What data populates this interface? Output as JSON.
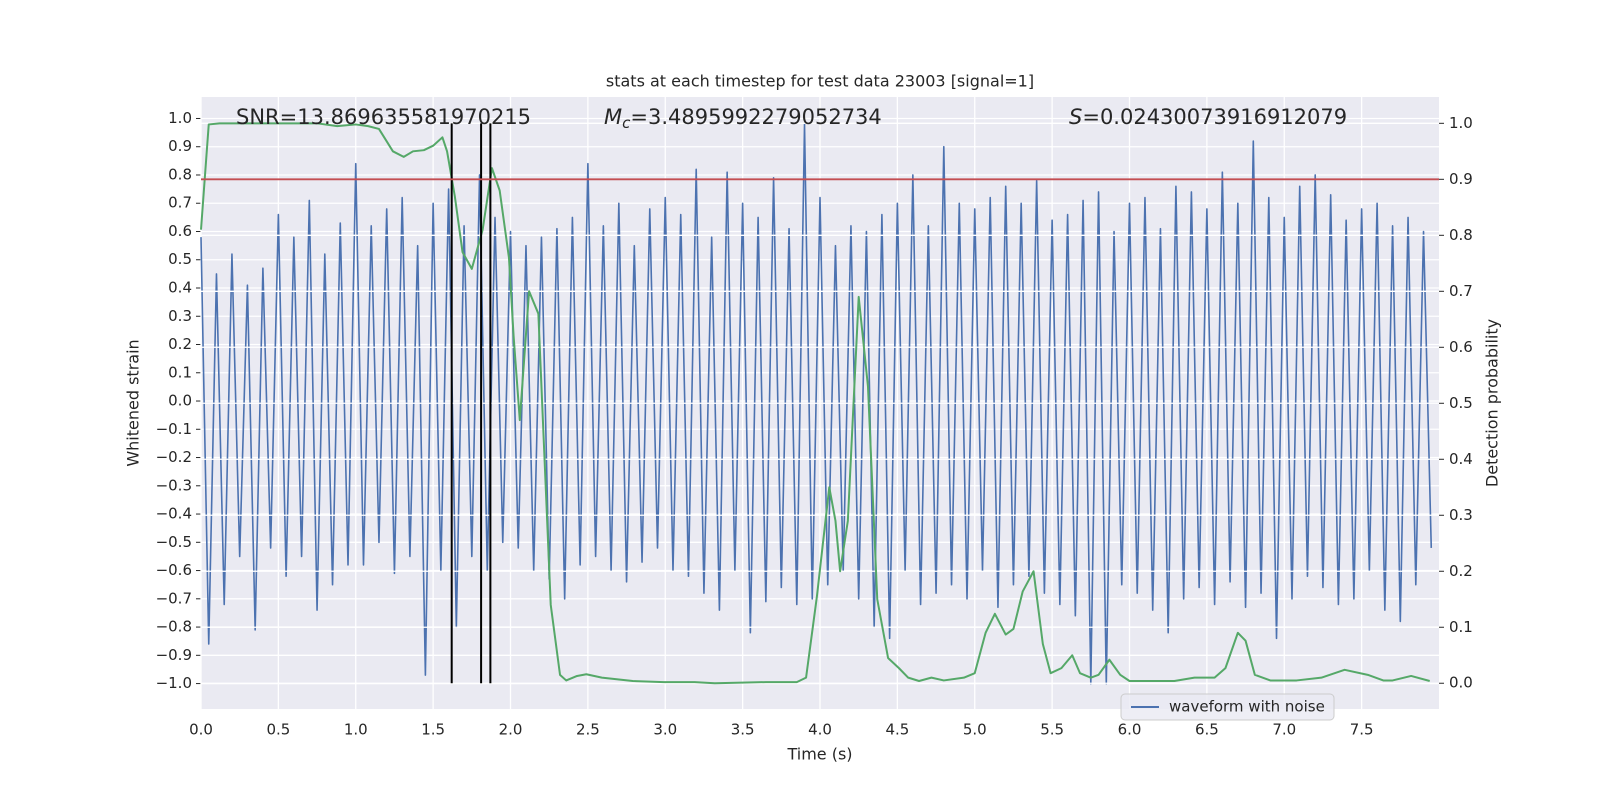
{
  "chart_data": {
    "type": "line",
    "title": "stats at each timestep for test data 23003 [signal=1]",
    "x_label": "Time (s)",
    "y_label": "Whitened strain",
    "y2_label": "Detection probability",
    "annotations": [
      {
        "variable": "SNR",
        "italic": false,
        "value": "=13.869635581970215"
      },
      {
        "variable": "M",
        "subscript": "c",
        "italic": true,
        "value": "=3.4895992279052734"
      },
      {
        "variable": "S",
        "italic": true,
        "value": "=0.02430073916912079"
      }
    ],
    "xlim": [
      0,
      8
    ],
    "ylim": [
      -1.09,
      1.076
    ],
    "y2lim": [
      -0.046,
      1.047
    ],
    "xticks": [
      {
        "value": 0,
        "label": "0.0"
      },
      {
        "value": 0.5,
        "label": "0.5"
      },
      {
        "value": 1,
        "label": "1.0"
      },
      {
        "value": 1.5,
        "label": "1.5"
      },
      {
        "value": 2,
        "label": "2.0"
      },
      {
        "value": 2.5,
        "label": "2.5"
      },
      {
        "value": 3,
        "label": "3.0"
      },
      {
        "value": 3.5,
        "label": "3.5"
      },
      {
        "value": 4,
        "label": "4.0"
      },
      {
        "value": 4.5,
        "label": "4.5"
      },
      {
        "value": 5,
        "label": "5.0"
      },
      {
        "value": 5.5,
        "label": "5.5"
      },
      {
        "value": 6,
        "label": "6.0"
      },
      {
        "value": 6.5,
        "label": "6.5"
      },
      {
        "value": 7,
        "label": "7.0"
      },
      {
        "value": 7.5,
        "label": "7.5"
      }
    ],
    "yticks": [
      {
        "value": 1,
        "label": "1.0"
      },
      {
        "value": 0.9,
        "label": "0.9"
      },
      {
        "value": 0.8,
        "label": "0.8"
      },
      {
        "value": 0.7,
        "label": "0.7"
      },
      {
        "value": 0.6,
        "label": "0.6"
      },
      {
        "value": 0.5,
        "label": "0.5"
      },
      {
        "value": 0.4,
        "label": "0.4"
      },
      {
        "value": 0.3,
        "label": "0.3"
      },
      {
        "value": 0.2,
        "label": "0.2"
      },
      {
        "value": 0.1,
        "label": "0.1"
      },
      {
        "value": 0,
        "label": "0.0"
      },
      {
        "value": -0.1,
        "label": "−0.1"
      },
      {
        "value": -0.2,
        "label": "−0.2"
      },
      {
        "value": -0.3,
        "label": "−0.3"
      },
      {
        "value": -0.4,
        "label": "−0.4"
      },
      {
        "value": -0.5,
        "label": "−0.5"
      },
      {
        "value": -0.6,
        "label": "−0.6"
      },
      {
        "value": -0.7,
        "label": "−0.7"
      },
      {
        "value": -0.8,
        "label": "−0.8"
      },
      {
        "value": -0.9,
        "label": "−0.9"
      },
      {
        "value": -1,
        "label": "−1.0"
      }
    ],
    "y2ticks": [
      {
        "value": 1,
        "label": "1.0"
      },
      {
        "value": 0.9,
        "label": "0.9"
      },
      {
        "value": 0.8,
        "label": "0.8"
      },
      {
        "value": 0.7,
        "label": "0.7"
      },
      {
        "value": 0.6,
        "label": "0.6"
      },
      {
        "value": 0.5,
        "label": "0.5"
      },
      {
        "value": 0.4,
        "label": "0.4"
      },
      {
        "value": 0.3,
        "label": "0.3"
      },
      {
        "value": 0.2,
        "label": "0.2"
      },
      {
        "value": 0.1,
        "label": "0.1"
      },
      {
        "value": 0,
        "label": "0.0"
      }
    ],
    "grid": true,
    "legend": "lower right",
    "series": [
      {
        "name": "waveform with noise",
        "color": "#4c72b0",
        "x": [
          0,
          0.05,
          0.1,
          0.15,
          0.2,
          0.25,
          0.3,
          0.35,
          0.4,
          0.45,
          0.5,
          0.55,
          0.6,
          0.65,
          0.7,
          0.75,
          0.8,
          0.85,
          0.9,
          0.95,
          1,
          1.05,
          1.1,
          1.15,
          1.2,
          1.25,
          1.3,
          1.35,
          1.4,
          1.45,
          1.5,
          1.55,
          1.6,
          1.65,
          1.7,
          1.75,
          1.8,
          1.85,
          1.9,
          1.95,
          2,
          2.05,
          2.1,
          2.15,
          2.2,
          2.25,
          2.3,
          2.35,
          2.4,
          2.45,
          2.5,
          2.55,
          2.6,
          2.65,
          2.7,
          2.75,
          2.8,
          2.85,
          2.9,
          2.95,
          3,
          3.05,
          3.1,
          3.15,
          3.2,
          3.25,
          3.3,
          3.35,
          3.4,
          3.45,
          3.5,
          3.55,
          3.6,
          3.65,
          3.7,
          3.75,
          3.8,
          3.85,
          3.9,
          3.95,
          4,
          4.05,
          4.1,
          4.15,
          4.2,
          4.25,
          4.3,
          4.35,
          4.4,
          4.45,
          4.5,
          4.55,
          4.6,
          4.65,
          4.7,
          4.75,
          4.8,
          4.85,
          4.9,
          4.95,
          5,
          5.05,
          5.1,
          5.15,
          5.2,
          5.25,
          5.3,
          5.35,
          5.4,
          5.45,
          5.5,
          5.55,
          5.6,
          5.65,
          5.7,
          5.75,
          5.8,
          5.85,
          5.9,
          5.95,
          6,
          6.05,
          6.1,
          6.15,
          6.2,
          6.25,
          6.3,
          6.35,
          6.4,
          6.45,
          6.5,
          6.55,
          6.6,
          6.65,
          6.7,
          6.75,
          6.8,
          6.85,
          6.9,
          6.95,
          7,
          7.05,
          7.1,
          7.15,
          7.2,
          7.25,
          7.3,
          7.35,
          7.4,
          7.45,
          7.5,
          7.55,
          7.6,
          7.65,
          7.7,
          7.75,
          7.8,
          7.85,
          7.9,
          7.95
        ],
        "values": [
          0.58,
          -0.86,
          0.45,
          -0.72,
          0.52,
          -0.55,
          0.41,
          -0.81,
          0.47,
          -0.52,
          0.66,
          -0.62,
          0.58,
          -0.55,
          0.71,
          -0.74,
          0.52,
          -0.65,
          0.63,
          -0.58,
          0.84,
          -0.58,
          0.62,
          -0.5,
          0.68,
          -0.61,
          0.72,
          -0.55,
          0.55,
          -0.97,
          0.7,
          -0.6,
          0.75,
          -0.8,
          0.62,
          -0.55,
          0.8,
          -0.6,
          0.65,
          -0.5,
          0.6,
          -0.52,
          0.55,
          -0.6,
          0.58,
          -0.63,
          0.61,
          -0.7,
          0.65,
          -0.58,
          0.84,
          -0.55,
          0.62,
          -0.6,
          0.7,
          -0.64,
          0.55,
          -0.57,
          0.68,
          -0.52,
          0.72,
          -0.6,
          0.66,
          -0.62,
          0.82,
          -0.68,
          0.58,
          -0.74,
          0.81,
          -0.6,
          0.7,
          -0.82,
          0.65,
          -0.71,
          0.79,
          -0.66,
          0.61,
          -0.72,
          0.98,
          -0.7,
          0.72,
          -0.65,
          0.55,
          -0.6,
          0.62,
          -0.7,
          0.6,
          -0.8,
          0.66,
          -0.84,
          0.7,
          -0.6,
          0.8,
          -0.72,
          0.62,
          -0.68,
          0.9,
          -0.65,
          0.7,
          -0.7,
          0.68,
          -0.6,
          0.72,
          -0.73,
          0.76,
          -0.65,
          0.7,
          -0.62,
          0.78,
          -0.68,
          0.64,
          -0.72,
          0.66,
          -0.76,
          0.71,
          -1.0,
          0.74,
          -1.0,
          0.6,
          -0.65,
          0.7,
          -0.68,
          0.72,
          -0.74,
          0.61,
          -0.82,
          0.76,
          -0.7,
          0.74,
          -0.66,
          0.68,
          -0.72,
          0.81,
          -0.64,
          0.7,
          -0.73,
          0.92,
          -0.68,
          0.72,
          -0.84,
          0.65,
          -0.7,
          0.76,
          -0.62,
          0.8,
          -0.66,
          0.73,
          -0.72,
          0.64,
          -0.7,
          0.68,
          -0.6,
          0.7,
          -0.74,
          0.62,
          -0.78,
          0.65,
          -0.65,
          0.6,
          -0.52
        ]
      },
      {
        "color": "#55a868",
        "axis": "y2",
        "x": [
          0,
          0.05,
          0.12,
          0.35,
          0.75,
          0.88,
          1.0,
          1.08,
          1.15,
          1.24,
          1.31,
          1.37,
          1.44,
          1.5,
          1.56,
          1.59,
          1.64,
          1.69,
          1.75,
          1.82,
          1.88,
          1.93,
          1.99,
          2.02,
          2.06,
          2.12,
          2.18,
          2.22,
          2.26,
          2.32,
          2.36,
          2.43,
          2.49,
          2.59,
          2.79,
          2.99,
          3.19,
          3.32,
          3.65,
          3.85,
          3.91,
          3.98,
          4.06,
          4.1,
          4.13,
          4.18,
          4.25,
          4.31,
          4.37,
          4.44,
          4.51,
          4.57,
          4.64,
          4.72,
          4.8,
          4.93,
          5.0,
          5.07,
          5.13,
          5.2,
          5.25,
          5.31,
          5.38,
          5.44,
          5.49,
          5.56,
          5.63,
          5.68,
          5.75,
          5.8,
          5.87,
          5.94,
          6.0,
          6.29,
          6.42,
          6.55,
          6.62,
          6.7,
          6.75,
          6.81,
          6.91,
          7.08,
          7.24,
          7.39,
          7.54,
          7.64,
          7.7,
          7.82,
          7.94
        ],
        "values": [
          0.81,
          0.998,
          1.0,
          1.0,
          1.0,
          0.995,
          0.998,
          0.995,
          0.99,
          0.95,
          0.94,
          0.95,
          0.952,
          0.96,
          0.975,
          0.95,
          0.87,
          0.77,
          0.74,
          0.81,
          0.92,
          0.88,
          0.76,
          0.62,
          0.47,
          0.7,
          0.66,
          0.4,
          0.14,
          0.015,
          0.005,
          0.013,
          0.016,
          0.01,
          0.004,
          0.002,
          0.002,
          0.0,
          0.002,
          0.002,
          0.01,
          0.155,
          0.35,
          0.29,
          0.2,
          0.29,
          0.69,
          0.53,
          0.15,
          0.045,
          0.027,
          0.01,
          0.004,
          0.01,
          0.005,
          0.01,
          0.018,
          0.09,
          0.124,
          0.087,
          0.097,
          0.164,
          0.2,
          0.07,
          0.018,
          0.027,
          0.05,
          0.018,
          0.01,
          0.015,
          0.042,
          0.015,
          0.004,
          0.004,
          0.01,
          0.01,
          0.027,
          0.09,
          0.076,
          0.015,
          0.005,
          0.005,
          0.01,
          0.024,
          0.015,
          0.005,
          0.005,
          0.013,
          0.004
        ]
      }
    ],
    "vlines": {
      "x": [
        1.62,
        1.81,
        1.87
      ],
      "ymin": 0,
      "ymax": 1,
      "color": "#000000",
      "axis": "y2"
    },
    "hline": {
      "y": 0.9,
      "color": "#c44e52",
      "axis": "y2"
    },
    "background": "#eaeaf2"
  }
}
